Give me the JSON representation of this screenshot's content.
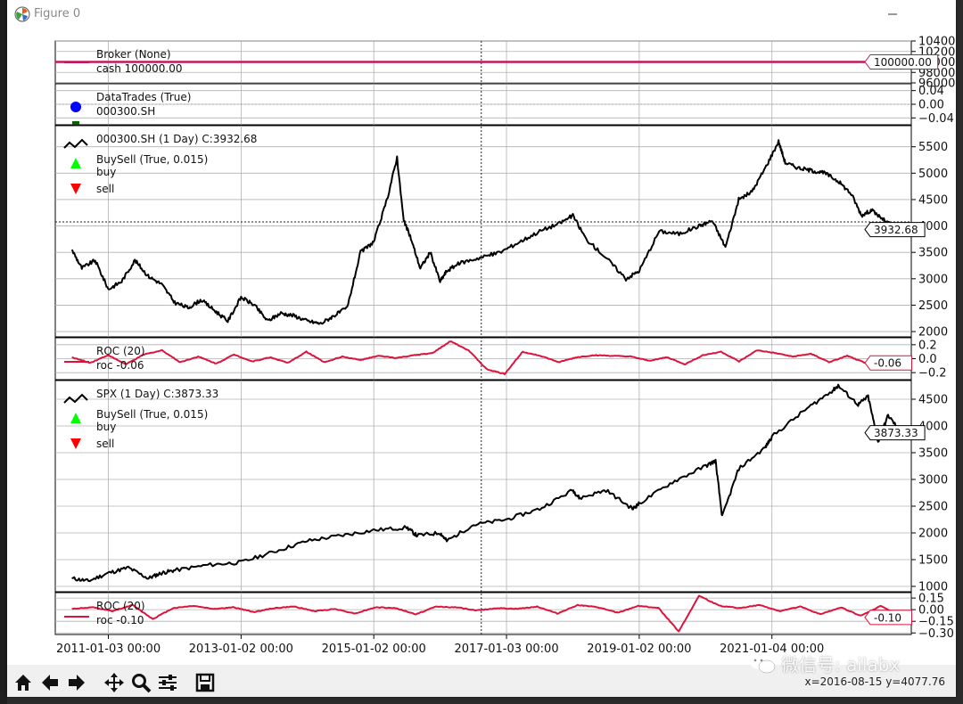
{
  "window": {
    "title": "Figure 0"
  },
  "statusbar": {
    "coords": "x=2016-08-15 y=4077.76"
  },
  "watermark": {
    "text": "微信号: ailabx"
  },
  "colors": {
    "price": "#000000",
    "roc": "#dc143c",
    "broker": "#c2185b",
    "buy": "#00ff00",
    "sell": "#ff0000",
    "trades": "#0000ff"
  },
  "toolbar_icons": [
    "home-icon",
    "back-icon",
    "forward-icon",
    "pan-icon",
    "zoom-icon",
    "configure-subplots-icon",
    "save-icon"
  ],
  "chart_data": [
    {
      "type": "line",
      "panel": "broker",
      "legend": [
        "Broker (None)",
        "cash 100000.00"
      ],
      "last_value_label": "100000.00",
      "yticks": [
        "104000",
        "102000",
        "100000",
        "98000",
        "96000"
      ],
      "ylim": [
        96000,
        104000
      ],
      "series": [
        {
          "name": "cash",
          "values": [
            100000,
            100000
          ]
        }
      ]
    },
    {
      "type": "scatter",
      "panel": "datatrades",
      "legend": [
        "DataTrades (True)",
        "000300.SH"
      ],
      "yticks": [
        "0.04",
        "0.00",
        "−0.04"
      ],
      "ylim": [
        -0.06,
        0.06
      ]
    },
    {
      "type": "line",
      "panel": "000300",
      "legend": [
        "000300.SH (1 Day) C:3932.68",
        "BuySell (True, 0.015)",
        "buy",
        "sell"
      ],
      "last_value_label": "3932.68",
      "crosshair_y": 4077.76,
      "yticks": [
        "5500",
        "5000",
        "4500",
        "4000",
        "3500",
        "3000",
        "2500",
        "2000"
      ],
      "ylim": [
        1900,
        5900
      ],
      "x": [
        2010.45,
        2010.6,
        2010.8,
        2011.0,
        2011.2,
        2011.4,
        2011.6,
        2011.8,
        2012.0,
        2012.2,
        2012.4,
        2012.6,
        2012.8,
        2013.0,
        2013.2,
        2013.4,
        2013.6,
        2013.8,
        2014.0,
        2014.2,
        2014.4,
        2014.6,
        2014.8,
        2015.0,
        2015.2,
        2015.35,
        2015.45,
        2015.55,
        2015.7,
        2015.85,
        2016.0,
        2016.1,
        2016.3,
        2016.6,
        2016.9,
        2017.2,
        2017.5,
        2017.8,
        2018.0,
        2018.2,
        2018.5,
        2018.8,
        2019.0,
        2019.3,
        2019.6,
        2019.9,
        2020.1,
        2020.3,
        2020.5,
        2020.7,
        2020.9,
        2021.1,
        2021.2,
        2021.4,
        2021.6,
        2021.8,
        2022.0,
        2022.2,
        2022.35,
        2022.5,
        2022.7,
        2022.95
      ],
      "values": [
        3550,
        3200,
        3350,
        2800,
        2950,
        3350,
        3050,
        2900,
        2550,
        2450,
        2600,
        2400,
        2200,
        2650,
        2500,
        2200,
        2350,
        2300,
        2200,
        2150,
        2300,
        2450,
        3500,
        3700,
        4500,
        5300,
        4100,
        3800,
        3200,
        3500,
        2950,
        3150,
        3300,
        3400,
        3500,
        3700,
        3900,
        4050,
        4200,
        3750,
        3400,
        3000,
        3150,
        3900,
        3850,
        4000,
        4100,
        3600,
        4500,
        4650,
        5100,
        5600,
        5200,
        5100,
        5050,
        5000,
        4850,
        4600,
        4200,
        4300,
        4100,
        3932.68
      ]
    },
    {
      "type": "line",
      "panel": "roc-000300",
      "legend": [
        "ROC (20)",
        "roc -0.06"
      ],
      "last_value_label": "-0.06",
      "yticks": [
        "0.2",
        "0.0",
        "−0.2"
      ],
      "ylim": [
        -0.3,
        0.3
      ],
      "series": [
        {
          "name": "roc",
          "values": [
            0.02,
            -0.06,
            0.05,
            -0.08,
            0.06,
            0.12,
            -0.05,
            0.03,
            -0.07,
            0.06,
            -0.04,
            0.02,
            -0.06,
            0.1,
            -0.05,
            0.03,
            -0.02,
            0.04,
            0.01,
            0.05,
            0.08,
            0.25,
            0.12,
            -0.15,
            -0.22,
            0.1,
            0.04,
            -0.05,
            0.02,
            0.05,
            0.04,
            0.03,
            -0.03,
            0.02,
            -0.08,
            0.05,
            0.1,
            -0.04,
            0.12,
            0.08,
            0.03,
            0.07,
            -0.05,
            0.04,
            -0.06,
            0.02,
            -0.06
          ]
        }
      ]
    },
    {
      "type": "line",
      "panel": "spx",
      "legend": [
        "SPX (1 Day) C:3873.33",
        "BuySell (True, 0.015)",
        "buy",
        "sell"
      ],
      "last_value_label": "3873.33",
      "yticks": [
        "4500",
        "4000",
        "3500",
        "3000",
        "2500",
        "2000",
        "1500",
        "1000"
      ],
      "ylim": [
        900,
        4850
      ],
      "x": [
        2010.45,
        2010.7,
        2011.0,
        2011.3,
        2011.6,
        2011.8,
        2012.0,
        2012.5,
        2013.0,
        2013.5,
        2014.0,
        2014.5,
        2015.0,
        2015.5,
        2015.65,
        2016.0,
        2016.1,
        2016.5,
        2017.0,
        2017.5,
        2018.0,
        2018.1,
        2018.5,
        2018.9,
        2019.0,
        2019.5,
        2020.0,
        2020.15,
        2020.25,
        2020.5,
        2020.9,
        2021.0,
        2021.5,
        2021.9,
        2022.0,
        2022.3,
        2022.45,
        2022.6,
        2022.75,
        2022.95
      ],
      "values": [
        1150,
        1100,
        1250,
        1350,
        1150,
        1250,
        1300,
        1400,
        1450,
        1650,
        1850,
        1950,
        2050,
        2100,
        1950,
        2000,
        1850,
        2150,
        2250,
        2450,
        2800,
        2650,
        2800,
        2450,
        2550,
        2950,
        3250,
        3350,
        2300,
        3200,
        3600,
        3800,
        4300,
        4650,
        4750,
        4400,
        4550,
        3700,
        4200,
        3873.33
      ]
    },
    {
      "type": "line",
      "panel": "roc-spx",
      "legend": [
        "ROC (20)",
        "roc -0.10"
      ],
      "last_value_label": "-0.10",
      "yticks": [
        "0.15",
        "0.00",
        "−0.15",
        "−0.30"
      ],
      "ylim": [
        -0.32,
        0.22
      ],
      "x_tick_labels": [
        "2011-01-03 00:00",
        "2013-01-02 00:00",
        "2015-01-02 00:00",
        "2017-01-03 00:00",
        "2019-01-02 00:00",
        "2021-01-04 00:00"
      ],
      "series": [
        {
          "name": "roc",
          "values": [
            0.01,
            0.03,
            -0.02,
            0.06,
            -0.12,
            0.02,
            0.05,
            0.01,
            0.03,
            -0.03,
            0.02,
            0.04,
            -0.02,
            0.01,
            -0.05,
            0.03,
            0.02,
            -0.06,
            0.04,
            0.03,
            -0.01,
            0.02,
            0.01,
            0.04,
            -0.05,
            0.06,
            0.03,
            -0.04,
            0.05,
            0.02,
            -0.28,
            0.18,
            0.05,
            0.02,
            0.06,
            -0.02,
            0.04,
            -0.06,
            0.03,
            -0.08,
            0.05,
            -0.1
          ]
        }
      ]
    }
  ]
}
